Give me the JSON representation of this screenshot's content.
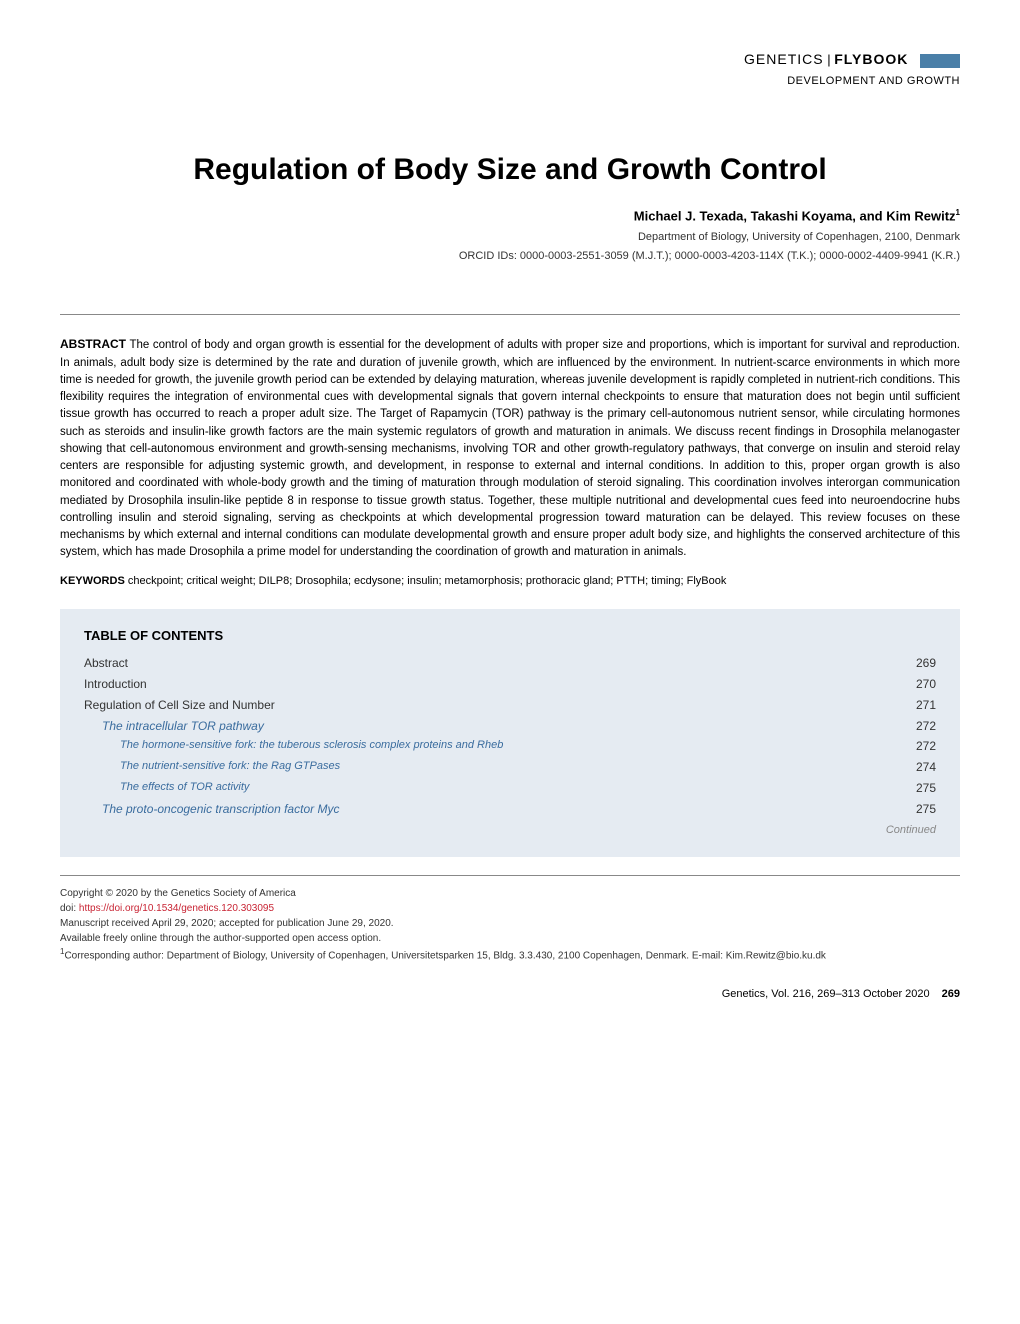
{
  "header": {
    "journal": "GENETICS",
    "series": "FLYBOOK",
    "section": "DEVELOPMENT AND GROWTH"
  },
  "title": "Regulation of Body Size and Growth Control",
  "authors": "Michael J. Texada, Takashi Koyama, and Kim Rewitz",
  "author_sup": "1",
  "affiliation": "Department of Biology, University of Copenhagen, 2100, Denmark",
  "orcids": "ORCID IDs: 0000-0003-2551-3059 (M.J.T.); 0000-0003-4203-114X (T.K.); 0000-0002-4409-9941 (K.R.)",
  "abstract_label": "ABSTRACT",
  "abstract_text": "The control of body and organ growth is essential for the development of adults with proper size and proportions, which is important for survival and reproduction. In animals, adult body size is determined by the rate and duration of juvenile growth, which are influenced by the environment. In nutrient-scarce environments in which more time is needed for growth, the juvenile growth period can be extended by delaying maturation, whereas juvenile development is rapidly completed in nutrient-rich conditions. This flexibility requires the integration of environmental cues with developmental signals that govern internal checkpoints to ensure that maturation does not begin until sufficient tissue growth has occurred to reach a proper adult size. The Target of Rapamycin (TOR) pathway is the primary cell-autonomous nutrient sensor, while circulating hormones such as steroids and insulin-like growth factors are the main systemic regulators of growth and maturation in animals. We discuss recent findings in Drosophila melanogaster showing that cell-autonomous environment and growth-sensing mechanisms, involving TOR and other growth-regulatory pathways, that converge on insulin and steroid relay centers are responsible for adjusting systemic growth, and development, in response to external and internal conditions. In addition to this, proper organ growth is also monitored and coordinated with whole-body growth and the timing of maturation through modulation of steroid signaling. This coordination involves interorgan communication mediated by Drosophila insulin-like peptide 8 in response to tissue growth status. Together, these multiple nutritional and developmental cues feed into neuroendocrine hubs controlling insulin and steroid signaling, serving as checkpoints at which developmental progression toward maturation can be delayed. This review focuses on these mechanisms by which external and internal conditions can modulate developmental growth and ensure proper adult body size, and highlights the conserved architecture of this system, which has made Drosophila a prime model for understanding the coordination of growth and maturation in animals.",
  "keywords_label": "KEYWORDS",
  "keywords_text": "checkpoint; critical weight; DILP8; Drosophila; ecdysone; insulin; metamorphosis; prothoracic gland; PTTH; timing; FlyBook",
  "toc": {
    "title": "TABLE OF CONTENTS",
    "continued": "Continued",
    "background_color": "#e5ebf2",
    "link_color": "#3a6c9e",
    "items": [
      {
        "level": 1,
        "label": "Abstract",
        "page": "269"
      },
      {
        "level": 1,
        "label": "Introduction",
        "page": "270"
      },
      {
        "level": 1,
        "label": "Regulation of Cell Size and Number",
        "page": "271"
      },
      {
        "level": 2,
        "label": "The intracellular TOR pathway",
        "page": "272"
      },
      {
        "level": 3,
        "label": "The hormone-sensitive fork: the tuberous sclerosis complex proteins and Rheb",
        "page": "272"
      },
      {
        "level": 3,
        "label": "The nutrient-sensitive fork: the Rag GTPases",
        "page": "274"
      },
      {
        "level": 3,
        "label": "The effects of TOR activity",
        "page": "275"
      },
      {
        "level": 2,
        "label": "The proto-oncogenic transcription factor Myc",
        "page": "275"
      }
    ]
  },
  "footer": {
    "copyright": "Copyright © 2020 by the Genetics Society of America",
    "doi_label": "doi: ",
    "doi": "https://doi.org/10.1534/genetics.120.303095",
    "received": "Manuscript received April 29, 2020; accepted for publication June 29, 2020.",
    "access": "Available freely online through the author-supported open access option.",
    "corresponding": "Corresponding author: Department of Biology, University of Copenhagen, Universitetsparken 15, Bldg. 3.3.430, 2100 Copenhagen, Denmark. E-mail: Kim.Rewitz@bio.ku.dk",
    "corresponding_sup": "1",
    "citation": "Genetics, Vol. 216, 269–313   October 2020",
    "page_number": "269"
  },
  "colors": {
    "doi_link": "#c82333",
    "accent_bar": "#4a7fa8"
  }
}
